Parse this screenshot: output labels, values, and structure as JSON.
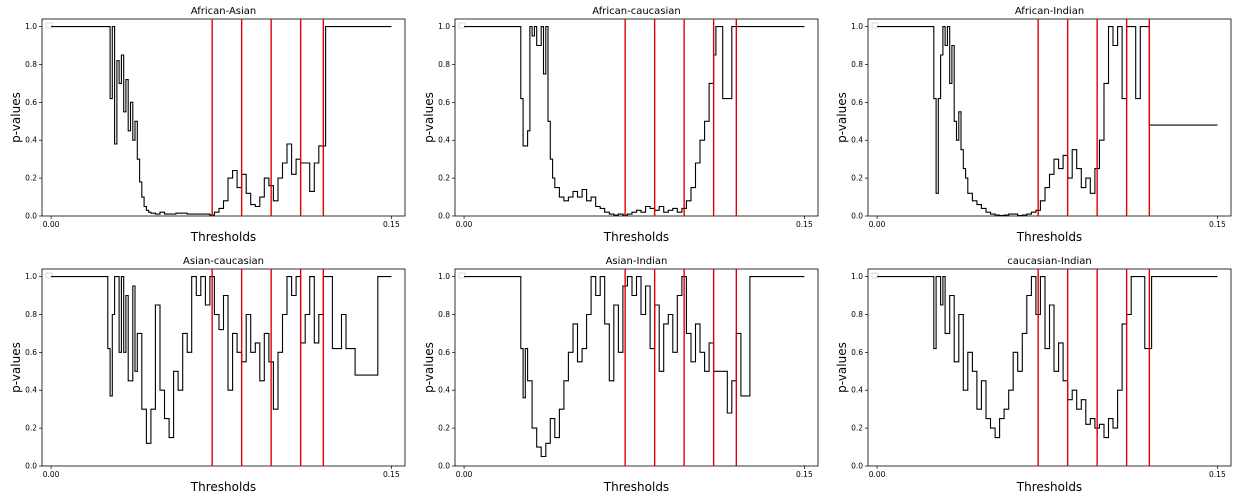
{
  "chart_data": [
    {
      "type": "line",
      "title": "African-Asian",
      "xlabel": "Thresholds",
      "ylabel": "p-values",
      "xlim": [
        -0.004,
        0.156
      ],
      "ylim": [
        0,
        1.04
      ],
      "x_ticks": [
        0.0,
        0.15
      ],
      "x_tick_labels": [
        "0.00",
        "0.15"
      ],
      "y_ticks": [
        0.0,
        0.2,
        0.4,
        0.6,
        0.8,
        1.0
      ],
      "y_tick_labels": [
        "0.0",
        "0.2",
        "0.4",
        "0.6",
        "0.8",
        "1.0"
      ],
      "legend": "top-left, empty",
      "series_color": "#000000",
      "vline_color": "#e00000",
      "vlines": [
        0.071,
        0.084,
        0.097,
        0.11,
        0.12
      ],
      "x": [
        0.0,
        0.025,
        0.026,
        0.027,
        0.028,
        0.029,
        0.03,
        0.031,
        0.032,
        0.033,
        0.034,
        0.035,
        0.036,
        0.037,
        0.038,
        0.039,
        0.04,
        0.041,
        0.042,
        0.043,
        0.044,
        0.046,
        0.048,
        0.05,
        0.055,
        0.06,
        0.065,
        0.07,
        0.072,
        0.074,
        0.076,
        0.078,
        0.08,
        0.082,
        0.084,
        0.086,
        0.088,
        0.09,
        0.092,
        0.094,
        0.096,
        0.098,
        0.1,
        0.102,
        0.104,
        0.106,
        0.108,
        0.11,
        0.112,
        0.114,
        0.116,
        0.118,
        0.12,
        0.121,
        0.15
      ],
      "y": [
        1.0,
        1.0,
        0.62,
        1.0,
        0.38,
        0.82,
        0.7,
        0.85,
        0.55,
        0.72,
        0.45,
        0.6,
        0.4,
        0.5,
        0.3,
        0.18,
        0.1,
        0.05,
        0.03,
        0.02,
        0.015,
        0.01,
        0.02,
        0.01,
        0.015,
        0.01,
        0.01,
        0.005,
        0.02,
        0.04,
        0.08,
        0.2,
        0.24,
        0.15,
        0.22,
        0.12,
        0.06,
        0.05,
        0.1,
        0.2,
        0.16,
        0.08,
        0.2,
        0.28,
        0.38,
        0.22,
        0.3,
        0.28,
        0.28,
        0.13,
        0.28,
        0.37,
        0.37,
        1.0,
        1.0
      ]
    },
    {
      "type": "line",
      "title": "African-caucasian",
      "xlabel": "Thresholds",
      "ylabel": "p-values",
      "xlim": [
        -0.004,
        0.156
      ],
      "ylim": [
        0,
        1.04
      ],
      "x_ticks": [
        0.0,
        0.15
      ],
      "x_tick_labels": [
        "0.00",
        "0.15"
      ],
      "y_ticks": [
        0.0,
        0.2,
        0.4,
        0.6,
        0.8,
        1.0
      ],
      "y_tick_labels": [
        "0.0",
        "0.2",
        "0.4",
        "0.6",
        "0.8",
        "1.0"
      ],
      "legend": "top-left, empty",
      "series_color": "#000000",
      "vline_color": "#e00000",
      "vlines": [
        0.071,
        0.084,
        0.097,
        0.11,
        0.12
      ],
      "x": [
        0.0,
        0.024,
        0.025,
        0.026,
        0.028,
        0.029,
        0.03,
        0.031,
        0.032,
        0.034,
        0.035,
        0.036,
        0.037,
        0.038,
        0.039,
        0.04,
        0.042,
        0.044,
        0.046,
        0.048,
        0.05,
        0.052,
        0.054,
        0.056,
        0.058,
        0.06,
        0.062,
        0.064,
        0.066,
        0.068,
        0.07,
        0.072,
        0.074,
        0.076,
        0.078,
        0.08,
        0.082,
        0.084,
        0.086,
        0.088,
        0.09,
        0.092,
        0.094,
        0.096,
        0.098,
        0.1,
        0.102,
        0.104,
        0.106,
        0.108,
        0.11,
        0.111,
        0.114,
        0.116,
        0.118,
        0.12,
        0.121,
        0.15
      ],
      "y": [
        1.0,
        1.0,
        0.62,
        0.37,
        0.45,
        1.0,
        0.95,
        1.0,
        0.9,
        1.0,
        0.75,
        1.0,
        0.5,
        0.3,
        0.2,
        0.15,
        0.1,
        0.08,
        0.1,
        0.13,
        0.1,
        0.14,
        0.08,
        0.1,
        0.05,
        0.04,
        0.02,
        0.01,
        0.005,
        0.01,
        0.005,
        0.01,
        0.02,
        0.03,
        0.02,
        0.05,
        0.04,
        0.03,
        0.05,
        0.02,
        0.03,
        0.04,
        0.02,
        0.04,
        0.08,
        0.15,
        0.28,
        0.4,
        0.5,
        0.7,
        0.85,
        1.0,
        0.62,
        0.62,
        1.0,
        1.0,
        1.0,
        1.0
      ]
    },
    {
      "type": "line",
      "title": "African-Indian",
      "xlabel": "Thresholds",
      "ylabel": "p-values",
      "xlim": [
        -0.004,
        0.156
      ],
      "ylim": [
        0,
        1.04
      ],
      "x_ticks": [
        0.0,
        0.15
      ],
      "x_tick_labels": [
        "0.00",
        "0.15"
      ],
      "y_ticks": [
        0.0,
        0.2,
        0.4,
        0.6,
        0.8,
        1.0
      ],
      "y_tick_labels": [
        "0.0",
        "0.2",
        "0.4",
        "0.6",
        "0.8",
        "1.0"
      ],
      "legend": "top-left, empty",
      "series_color": "#000000",
      "vline_color": "#e00000",
      "vlines": [
        0.071,
        0.084,
        0.097,
        0.11,
        0.12
      ],
      "x": [
        0.0,
        0.024,
        0.025,
        0.026,
        0.027,
        0.028,
        0.029,
        0.03,
        0.031,
        0.032,
        0.033,
        0.034,
        0.035,
        0.036,
        0.037,
        0.038,
        0.039,
        0.04,
        0.042,
        0.044,
        0.046,
        0.048,
        0.05,
        0.052,
        0.054,
        0.056,
        0.058,
        0.06,
        0.062,
        0.064,
        0.066,
        0.068,
        0.07,
        0.072,
        0.074,
        0.076,
        0.078,
        0.08,
        0.082,
        0.084,
        0.086,
        0.088,
        0.09,
        0.092,
        0.094,
        0.096,
        0.098,
        0.1,
        0.102,
        0.104,
        0.106,
        0.108,
        0.11,
        0.112,
        0.114,
        0.116,
        0.118,
        0.12,
        0.15
      ],
      "y": [
        1.0,
        1.0,
        0.62,
        0.12,
        0.62,
        0.85,
        1.0,
        0.9,
        1.0,
        0.7,
        0.9,
        0.5,
        0.4,
        0.55,
        0.35,
        0.25,
        0.2,
        0.12,
        0.08,
        0.06,
        0.04,
        0.02,
        0.01,
        0.005,
        0.002,
        0.005,
        0.01,
        0.01,
        0.002,
        0.005,
        0.01,
        0.02,
        0.03,
        0.08,
        0.15,
        0.22,
        0.3,
        0.25,
        0.32,
        0.2,
        0.35,
        0.25,
        0.15,
        0.2,
        0.12,
        0.25,
        0.4,
        0.7,
        1.0,
        0.9,
        1.0,
        0.62,
        1.0,
        1.0,
        0.62,
        1.0,
        1.0,
        0.48,
        0.48
      ]
    },
    {
      "type": "line",
      "title": "Asian-caucasian",
      "xlabel": "Thresholds",
      "ylabel": "p-values",
      "xlim": [
        -0.004,
        0.156
      ],
      "ylim": [
        0,
        1.04
      ],
      "x_ticks": [
        0.0,
        0.15
      ],
      "x_tick_labels": [
        "0.00",
        "0.15"
      ],
      "y_ticks": [
        0.0,
        0.2,
        0.4,
        0.6,
        0.8,
        1.0
      ],
      "y_tick_labels": [
        "0.0",
        "0.2",
        "0.4",
        "0.6",
        "0.8",
        "1.0"
      ],
      "legend": "top-left, empty",
      "series_color": "#000000",
      "vline_color": "#e00000",
      "vlines": [
        0.071,
        0.084,
        0.097,
        0.11,
        0.12
      ],
      "x": [
        0.0,
        0.024,
        0.025,
        0.026,
        0.027,
        0.028,
        0.03,
        0.031,
        0.032,
        0.033,
        0.034,
        0.036,
        0.037,
        0.038,
        0.04,
        0.042,
        0.044,
        0.046,
        0.048,
        0.05,
        0.052,
        0.054,
        0.056,
        0.058,
        0.06,
        0.062,
        0.064,
        0.066,
        0.068,
        0.07,
        0.072,
        0.074,
        0.076,
        0.078,
        0.08,
        0.082,
        0.084,
        0.086,
        0.088,
        0.09,
        0.092,
        0.094,
        0.096,
        0.098,
        0.1,
        0.102,
        0.104,
        0.106,
        0.108,
        0.11,
        0.112,
        0.114,
        0.116,
        0.118,
        0.12,
        0.122,
        0.124,
        0.128,
        0.13,
        0.134,
        0.136,
        0.144,
        0.15
      ],
      "y": [
        1.0,
        1.0,
        0.62,
        0.37,
        0.8,
        1.0,
        0.6,
        1.0,
        0.6,
        0.9,
        0.45,
        0.95,
        0.5,
        0.7,
        0.3,
        0.12,
        0.3,
        0.85,
        0.4,
        0.25,
        0.15,
        0.5,
        0.4,
        0.7,
        0.6,
        1.0,
        0.9,
        1.0,
        0.85,
        1.0,
        0.8,
        0.72,
        0.9,
        0.4,
        0.7,
        0.6,
        0.55,
        0.8,
        0.6,
        0.65,
        0.45,
        0.7,
        0.55,
        0.3,
        0.6,
        0.8,
        1.0,
        0.9,
        1.0,
        0.65,
        0.8,
        1.0,
        0.65,
        0.8,
        1.0,
        1.0,
        0.62,
        0.8,
        0.62,
        0.48,
        0.48,
        1.0,
        1.0
      ]
    },
    {
      "type": "line",
      "title": "Asian-Indian",
      "xlabel": "Thresholds",
      "ylabel": "p-values",
      "xlim": [
        -0.004,
        0.156
      ],
      "ylim": [
        0,
        1.04
      ],
      "x_ticks": [
        0.0,
        0.15
      ],
      "x_tick_labels": [
        "0.00",
        "0.15"
      ],
      "y_ticks": [
        0.0,
        0.2,
        0.4,
        0.6,
        0.8,
        1.0
      ],
      "y_tick_labels": [
        "0.0",
        "0.2",
        "0.4",
        "0.6",
        "0.8",
        "1.0"
      ],
      "legend": "top-left, empty",
      "series_color": "#000000",
      "vline_color": "#e00000",
      "vlines": [
        0.071,
        0.084,
        0.097,
        0.11,
        0.12
      ],
      "x": [
        0.0,
        0.024,
        0.025,
        0.026,
        0.027,
        0.028,
        0.03,
        0.032,
        0.034,
        0.036,
        0.038,
        0.04,
        0.042,
        0.044,
        0.046,
        0.048,
        0.05,
        0.052,
        0.054,
        0.056,
        0.058,
        0.06,
        0.062,
        0.064,
        0.066,
        0.068,
        0.07,
        0.072,
        0.074,
        0.076,
        0.078,
        0.08,
        0.082,
        0.084,
        0.086,
        0.088,
        0.09,
        0.092,
        0.094,
        0.096,
        0.098,
        0.1,
        0.102,
        0.104,
        0.106,
        0.108,
        0.11,
        0.112,
        0.114,
        0.116,
        0.118,
        0.12,
        0.122,
        0.124,
        0.126,
        0.13,
        0.15
      ],
      "y": [
        1.0,
        1.0,
        0.62,
        0.36,
        0.62,
        0.45,
        0.2,
        0.1,
        0.05,
        0.12,
        0.25,
        0.15,
        0.3,
        0.45,
        0.6,
        0.75,
        0.55,
        0.62,
        0.8,
        1.0,
        0.9,
        1.0,
        0.75,
        0.45,
        0.85,
        0.6,
        0.95,
        1.0,
        0.9,
        1.0,
        0.8,
        0.95,
        0.62,
        0.85,
        0.5,
        0.75,
        0.8,
        0.6,
        0.9,
        1.0,
        0.7,
        0.55,
        0.75,
        0.6,
        0.5,
        0.65,
        0.5,
        0.5,
        0.5,
        0.28,
        0.45,
        0.7,
        0.37,
        0.37,
        1.0,
        1.0,
        1.0
      ]
    },
    {
      "type": "line",
      "title": "caucasian-Indian",
      "xlabel": "Thresholds",
      "ylabel": "p-values",
      "xlim": [
        -0.004,
        0.156
      ],
      "ylim": [
        0,
        1.04
      ],
      "x_ticks": [
        0.0,
        0.15
      ],
      "x_tick_labels": [
        "0.00",
        "0.15"
      ],
      "y_ticks": [
        0.0,
        0.2,
        0.4,
        0.6,
        0.8,
        1.0
      ],
      "y_tick_labels": [
        "0.0",
        "0.2",
        "0.4",
        "0.6",
        "0.8",
        "1.0"
      ],
      "legend": "top-left, empty",
      "series_color": "#000000",
      "vline_color": "#e00000",
      "vlines": [
        0.071,
        0.084,
        0.097,
        0.11,
        0.12
      ],
      "x": [
        0.0,
        0.024,
        0.025,
        0.026,
        0.028,
        0.029,
        0.03,
        0.032,
        0.034,
        0.036,
        0.038,
        0.04,
        0.042,
        0.044,
        0.046,
        0.048,
        0.05,
        0.052,
        0.054,
        0.056,
        0.058,
        0.06,
        0.062,
        0.064,
        0.066,
        0.068,
        0.07,
        0.072,
        0.074,
        0.076,
        0.078,
        0.08,
        0.082,
        0.084,
        0.086,
        0.088,
        0.09,
        0.092,
        0.094,
        0.096,
        0.098,
        0.1,
        0.102,
        0.104,
        0.106,
        0.108,
        0.11,
        0.112,
        0.114,
        0.116,
        0.118,
        0.12,
        0.121,
        0.15
      ],
      "y": [
        1.0,
        1.0,
        0.62,
        1.0,
        0.85,
        1.0,
        0.7,
        0.9,
        0.55,
        0.8,
        0.4,
        0.6,
        0.5,
        0.3,
        0.45,
        0.25,
        0.2,
        0.15,
        0.25,
        0.3,
        0.4,
        0.6,
        0.5,
        0.7,
        0.9,
        1.0,
        0.8,
        1.0,
        0.62,
        0.85,
        0.5,
        0.65,
        0.45,
        0.35,
        0.4,
        0.3,
        0.35,
        0.22,
        0.25,
        0.2,
        0.22,
        0.15,
        0.25,
        0.2,
        0.4,
        0.75,
        0.8,
        1.0,
        1.0,
        1.0,
        0.62,
        0.62,
        1.0,
        1.0
      ]
    }
  ]
}
